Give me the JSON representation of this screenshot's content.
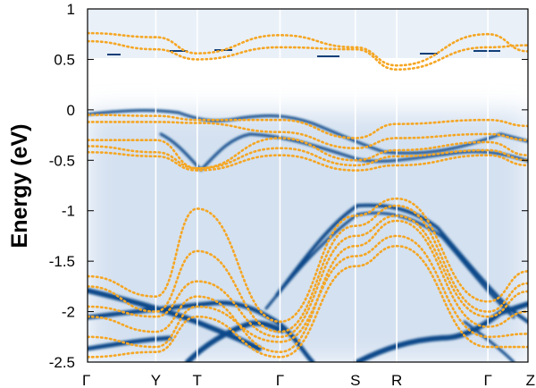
{
  "chart_data": {
    "type": "band-structure",
    "ylabel": "Energy (eV)",
    "ylim": [
      -2.5,
      1.0
    ],
    "y_ticks": [
      {
        "value": 1,
        "label": "1"
      },
      {
        "value": 0.5,
        "label": "0.5"
      },
      {
        "value": 0,
        "label": "0"
      },
      {
        "value": -0.5,
        "label": "-0.5"
      },
      {
        "value": -1,
        "label": "-1"
      },
      {
        "value": -1.5,
        "label": "-1.5"
      },
      {
        "value": -2,
        "label": "-2"
      },
      {
        "value": -2.5,
        "label": "-2.5"
      }
    ],
    "k_points": [
      {
        "label": "Γ",
        "k": 0.0
      },
      {
        "label": "Y",
        "k": 0.155
      },
      {
        "label": "T",
        "k": 0.249
      },
      {
        "label": "Γ",
        "k": 0.437
      },
      {
        "label": "S",
        "k": 0.608
      },
      {
        "label": "R",
        "k": 0.702
      },
      {
        "label": "Γ",
        "k": 0.909
      },
      {
        "label": "Z",
        "k": 1.0
      }
    ],
    "spectral_background": {
      "colormap": [
        "#ffffff",
        "#0b3d7a"
      ]
    },
    "dft_bands": {
      "color": "#f5a623",
      "style": "dotted",
      "k": [
        0,
        0.155,
        0.249,
        0.437,
        0.608,
        0.702,
        0.909,
        1.0
      ],
      "bands": [
        [
          0.76,
          0.72,
          0.56,
          0.74,
          0.62,
          0.44,
          0.75,
          0.58
        ],
        [
          0.68,
          0.6,
          0.5,
          0.62,
          0.6,
          0.4,
          0.62,
          0.64
        ],
        [
          -0.05,
          -0.06,
          -0.1,
          -0.1,
          -0.28,
          -0.14,
          -0.1,
          -0.16
        ],
        [
          -0.12,
          -0.12,
          -0.13,
          -0.22,
          -0.38,
          -0.28,
          -0.24,
          -0.3
        ],
        [
          -0.3,
          -0.3,
          -0.58,
          -0.28,
          -0.5,
          -0.4,
          -0.32,
          -0.45
        ],
        [
          -0.36,
          -0.42,
          -0.58,
          -0.38,
          -0.55,
          -0.46,
          -0.4,
          -0.5
        ],
        [
          -0.42,
          -0.46,
          -0.6,
          -0.45,
          -0.6,
          -0.55,
          -0.45,
          -0.55
        ],
        [
          -1.65,
          -1.85,
          -0.98,
          -2.1,
          -1.05,
          -0.88,
          -1.9,
          -1.6
        ],
        [
          -1.75,
          -2.0,
          -1.4,
          -2.2,
          -1.15,
          -0.95,
          -2.0,
          -1.72
        ],
        [
          -1.95,
          -2.05,
          -1.7,
          -2.25,
          -1.25,
          -1.05,
          -2.05,
          -1.8
        ],
        [
          -2.05,
          -2.2,
          -1.85,
          -2.4,
          -1.35,
          -1.1,
          -2.15,
          -2.0
        ],
        [
          -2.25,
          -2.35,
          -1.95,
          -2.3,
          -1.45,
          -1.25,
          -2.25,
          -2.22
        ],
        [
          -2.45,
          -2.4,
          -2.05,
          -2.45,
          -1.55,
          -1.35,
          -2.35,
          -2.35
        ]
      ]
    }
  }
}
